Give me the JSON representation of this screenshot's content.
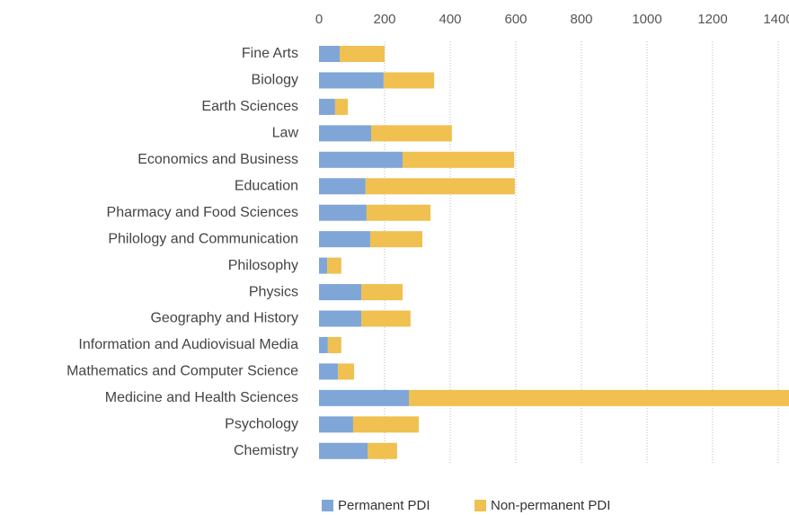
{
  "chart_data": {
    "type": "stacked-barh",
    "categories": [
      "Fine Arts",
      "Biology",
      "Earth Sciences",
      "Law",
      "Economics and Business",
      "Education",
      "Pharmacy and Food Sciences",
      "Philology and Communication",
      "Philosophy",
      "Physics",
      "Geography and History",
      "Information and Audiovisual Media",
      "Mathematics and Computer Science",
      "Medicine and Health Sciences",
      "Psychology",
      "Chemistry"
    ],
    "series": [
      {
        "name": "Permanent PDI",
        "color": "#7fa6d6",
        "values": [
          63,
          197,
          49,
          159,
          255,
          142,
          145,
          156,
          25,
          129,
          129,
          27,
          58,
          274,
          104,
          148
        ]
      },
      {
        "name": "Non-permanent PDI",
        "color": "#f0c050",
        "values": [
          137,
          154,
          39,
          246,
          340,
          455,
          195,
          159,
          43,
          126,
          150,
          41,
          49,
          1160,
          200,
          90
        ]
      }
    ],
    "xlim": [
      0,
      1400
    ],
    "xticks": [
      0,
      200,
      400,
      600,
      800,
      1000,
      1200,
      1400
    ],
    "grid": true,
    "legend": "bottom"
  }
}
